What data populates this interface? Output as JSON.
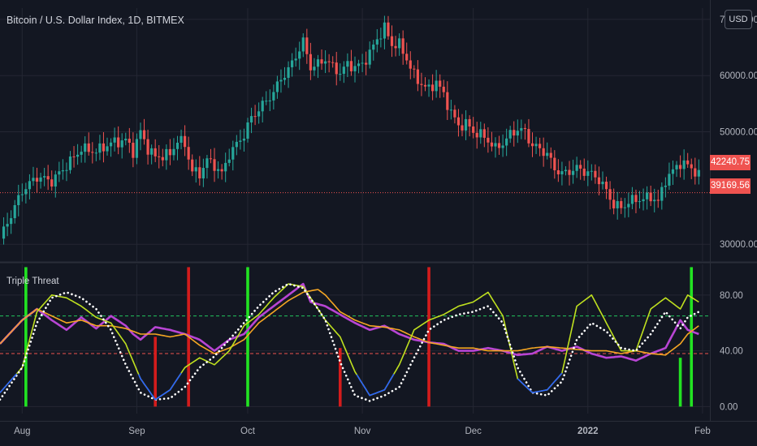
{
  "header": {
    "symbol": "Bitcoin / U.S. Dollar Index, 1D, BITMEX"
  },
  "currency_button": "USD",
  "indicator_title": "Triple Threat",
  "price_tags": {
    "last": "42240.75",
    "line": "39169.56"
  },
  "colors": {
    "up": "#26a69a",
    "down": "#ef5350",
    "bg": "#131722",
    "grid": "#242733",
    "axis_text": "#b2b5be"
  },
  "chart_data": [
    {
      "type": "candlestick",
      "title": "Bitcoin / U.S. Dollar Index, 1D, BITMEX",
      "y_ticks": [
        "70000.00",
        "60000.00",
        "50000.00",
        "30000.00"
      ],
      "ylim": [
        27000,
        72000
      ],
      "x_ticks": [
        "Aug",
        "Sep",
        "Oct",
        "Nov",
        "Dec",
        "2022",
        "Feb"
      ],
      "x_tick_days": [
        6,
        37,
        67,
        98,
        128,
        159,
        190
      ],
      "reference_line": 39169.56,
      "last_price": 42240.75,
      "close_path": [
        [
          0,
          31000
        ],
        [
          6,
          39500
        ],
        [
          10,
          42000
        ],
        [
          14,
          41200
        ],
        [
          18,
          44000
        ],
        [
          22,
          47000
        ],
        [
          26,
          46500
        ],
        [
          30,
          48000
        ],
        [
          34,
          48500
        ],
        [
          36,
          46500
        ],
        [
          38,
          50000
        ],
        [
          40,
          47000
        ],
        [
          42,
          45500
        ],
        [
          46,
          46000
        ],
        [
          48,
          48500
        ],
        [
          50,
          47800
        ],
        [
          52,
          43000
        ],
        [
          54,
          42500
        ],
        [
          56,
          45000
        ],
        [
          58,
          44000
        ],
        [
          60,
          42500
        ],
        [
          62,
          46000
        ],
        [
          66,
          49500
        ],
        [
          68,
          52500
        ],
        [
          70,
          54000
        ],
        [
          72,
          55500
        ],
        [
          74,
          57000
        ],
        [
          76,
          59500
        ],
        [
          78,
          61000
        ],
        [
          80,
          63500
        ],
        [
          82,
          66000
        ],
        [
          84,
          61500
        ],
        [
          86,
          62000
        ],
        [
          88,
          63000
        ],
        [
          90,
          61500
        ],
        [
          92,
          60500
        ],
        [
          94,
          62000
        ],
        [
          96,
          61500
        ],
        [
          98,
          62000
        ],
        [
          100,
          64000
        ],
        [
          102,
          66500
        ],
        [
          104,
          68500
        ],
        [
          106,
          65500
        ],
        [
          108,
          65500
        ],
        [
          110,
          63000
        ],
        [
          112,
          60000
        ],
        [
          114,
          58500
        ],
        [
          116,
          57500
        ],
        [
          118,
          59000
        ],
        [
          120,
          56500
        ],
        [
          122,
          53500
        ],
        [
          124,
          51000
        ],
        [
          126,
          51500
        ],
        [
          128,
          50000
        ],
        [
          130,
          49500
        ],
        [
          132,
          48500
        ],
        [
          134,
          47000
        ],
        [
          136,
          48000
        ],
        [
          138,
          49500
        ],
        [
          140,
          50500
        ],
        [
          142,
          50000
        ],
        [
          144,
          47500
        ],
        [
          146,
          47000
        ],
        [
          148,
          46000
        ],
        [
          150,
          43500
        ],
        [
          152,
          42500
        ],
        [
          154,
          43000
        ],
        [
          156,
          43500
        ],
        [
          158,
          43000
        ],
        [
          160,
          42500
        ],
        [
          162,
          41500
        ],
        [
          164,
          39500
        ],
        [
          166,
          37000
        ],
        [
          168,
          36500
        ],
        [
          170,
          37500
        ],
        [
          172,
          38000
        ],
        [
          174,
          38000
        ],
        [
          176,
          38500
        ],
        [
          178,
          37500
        ],
        [
          180,
          41500
        ],
        [
          182,
          43000
        ],
        [
          184,
          44500
        ],
        [
          186,
          44000
        ],
        [
          188,
          43000
        ],
        [
          189,
          42240
        ]
      ]
    },
    {
      "type": "line",
      "title": "Triple Threat",
      "y_ticks": [
        "80.00",
        "40.00",
        "0.00"
      ],
      "ylim": [
        -5,
        102
      ],
      "hlines": [
        {
          "y": 65,
          "style": "dashed",
          "color": "#22c55e"
        },
        {
          "y": 38,
          "style": "dashed",
          "color": "#ef5350"
        }
      ],
      "series": [
        {
          "color": "#b845d4",
          "values": [
            [
              0,
              45
            ],
            [
              6,
              62
            ],
            [
              10,
              70
            ],
            [
              14,
              62
            ],
            [
              18,
              55
            ],
            [
              22,
              64
            ],
            [
              26,
              56
            ],
            [
              30,
              65
            ],
            [
              34,
              58
            ],
            [
              36,
              52
            ],
            [
              38,
              48
            ],
            [
              42,
              57
            ],
            [
              46,
              55
            ],
            [
              50,
              52
            ],
            [
              54,
              48
            ],
            [
              58,
              40
            ],
            [
              62,
              48
            ],
            [
              66,
              52
            ],
            [
              70,
              64
            ],
            [
              74,
              72
            ],
            [
              78,
              80
            ],
            [
              82,
              88
            ],
            [
              84,
              75
            ],
            [
              88,
              72
            ],
            [
              92,
              66
            ],
            [
              96,
              60
            ],
            [
              100,
              55
            ],
            [
              104,
              58
            ],
            [
              108,
              52
            ],
            [
              112,
              48
            ],
            [
              116,
              46
            ],
            [
              120,
              45
            ],
            [
              124,
              40
            ],
            [
              128,
              40
            ],
            [
              132,
              42
            ],
            [
              136,
              40
            ],
            [
              140,
              37
            ],
            [
              144,
              38
            ],
            [
              148,
              43
            ],
            [
              152,
              40
            ],
            [
              156,
              43
            ],
            [
              160,
              38
            ],
            [
              164,
              35
            ],
            [
              168,
              36
            ],
            [
              172,
              33
            ],
            [
              176,
              38
            ],
            [
              180,
              42
            ],
            [
              184,
              62
            ],
            [
              186,
              55
            ],
            [
              189,
              52
            ]
          ]
        },
        {
          "color": "#f5a623",
          "values": [
            [
              0,
              45
            ],
            [
              6,
              62
            ],
            [
              10,
              70
            ],
            [
              14,
              65
            ],
            [
              18,
              60
            ],
            [
              22,
              62
            ],
            [
              26,
              58
            ],
            [
              30,
              58
            ],
            [
              34,
              56
            ],
            [
              38,
              52
            ],
            [
              42,
              52
            ],
            [
              46,
              50
            ],
            [
              50,
              52
            ],
            [
              54,
              44
            ],
            [
              58,
              38
            ],
            [
              62,
              42
            ],
            [
              66,
              48
            ],
            [
              70,
              60
            ],
            [
              74,
              68
            ],
            [
              78,
              76
            ],
            [
              82,
              82
            ],
            [
              86,
              84
            ],
            [
              88,
              80
            ],
            [
              92,
              68
            ],
            [
              96,
              62
            ],
            [
              100,
              58
            ],
            [
              104,
              57
            ],
            [
              108,
              55
            ],
            [
              112,
              50
            ],
            [
              116,
              46
            ],
            [
              120,
              44
            ],
            [
              124,
              42
            ],
            [
              128,
              42
            ],
            [
              132,
              40
            ],
            [
              136,
              40
            ],
            [
              140,
              40
            ],
            [
              144,
              42
            ],
            [
              148,
              43
            ],
            [
              152,
              42
            ],
            [
              156,
              41
            ],
            [
              160,
              40
            ],
            [
              164,
              40
            ],
            [
              168,
              38
            ],
            [
              172,
              40
            ],
            [
              176,
              38
            ],
            [
              180,
              37
            ],
            [
              184,
              45
            ],
            [
              186,
              52
            ],
            [
              189,
              58
            ]
          ]
        },
        {
          "color": "#bfe01f",
          "values": [
            [
              0,
              10
            ],
            [
              6,
              28
            ],
            [
              10,
              68
            ],
            [
              14,
              80
            ],
            [
              18,
              78
            ],
            [
              22,
              72
            ],
            [
              26,
              64
            ],
            [
              30,
              60
            ],
            [
              34,
              45
            ],
            [
              38,
              20
            ],
            [
              42,
              5
            ],
            [
              46,
              12
            ],
            [
              50,
              28
            ],
            [
              54,
              35
            ],
            [
              58,
              30
            ],
            [
              62,
              40
            ],
            [
              66,
              58
            ],
            [
              70,
              66
            ],
            [
              74,
              78
            ],
            [
              78,
              88
            ],
            [
              82,
              86
            ],
            [
              86,
              70
            ],
            [
              88,
              62
            ],
            [
              92,
              50
            ],
            [
              96,
              25
            ],
            [
              100,
              8
            ],
            [
              104,
              12
            ],
            [
              108,
              30
            ],
            [
              112,
              55
            ],
            [
              116,
              62
            ],
            [
              120,
              66
            ],
            [
              124,
              72
            ],
            [
              128,
              75
            ],
            [
              132,
              82
            ],
            [
              136,
              65
            ],
            [
              140,
              20
            ],
            [
              144,
              10
            ],
            [
              148,
              12
            ],
            [
              152,
              24
            ],
            [
              156,
              72
            ],
            [
              160,
              80
            ],
            [
              164,
              60
            ],
            [
              168,
              40
            ],
            [
              172,
              40
            ],
            [
              176,
              70
            ],
            [
              180,
              78
            ],
            [
              184,
              70
            ],
            [
              186,
              80
            ],
            [
              189,
              75
            ]
          ]
        },
        {
          "color": "#ffffff",
          "style": "dotted",
          "values": [
            [
              0,
              5
            ],
            [
              6,
              28
            ],
            [
              10,
              60
            ],
            [
              14,
              78
            ],
            [
              18,
              82
            ],
            [
              22,
              78
            ],
            [
              26,
              70
            ],
            [
              30,
              55
            ],
            [
              34,
              30
            ],
            [
              38,
              10
            ],
            [
              42,
              5
            ],
            [
              46,
              6
            ],
            [
              50,
              14
            ],
            [
              54,
              28
            ],
            [
              58,
              36
            ],
            [
              62,
              48
            ],
            [
              66,
              60
            ],
            [
              70,
              72
            ],
            [
              74,
              82
            ],
            [
              78,
              88
            ],
            [
              82,
              85
            ],
            [
              86,
              70
            ],
            [
              88,
              62
            ],
            [
              92,
              32
            ],
            [
              96,
              8
            ],
            [
              100,
              4
            ],
            [
              104,
              8
            ],
            [
              108,
              14
            ],
            [
              112,
              35
            ],
            [
              116,
              55
            ],
            [
              120,
              62
            ],
            [
              124,
              66
            ],
            [
              128,
              68
            ],
            [
              132,
              72
            ],
            [
              136,
              60
            ],
            [
              140,
              28
            ],
            [
              144,
              10
            ],
            [
              148,
              8
            ],
            [
              152,
              18
            ],
            [
              156,
              48
            ],
            [
              160,
              60
            ],
            [
              164,
              54
            ],
            [
              168,
              42
            ],
            [
              172,
              40
            ],
            [
              176,
              52
            ],
            [
              180,
              68
            ],
            [
              184,
              56
            ],
            [
              186,
              64
            ],
            [
              189,
              68
            ]
          ]
        }
      ],
      "signal_bars": [
        {
          "x": 7,
          "color": "#22e322",
          "from": 0,
          "to": 100
        },
        {
          "x": 42,
          "color": "#d41c1c",
          "from": 0,
          "to": 50
        },
        {
          "x": 51,
          "color": "#d41c1c",
          "from": 0,
          "to": 100
        },
        {
          "x": 67,
          "color": "#22e322",
          "from": 0,
          "to": 100
        },
        {
          "x": 92,
          "color": "#d41c1c",
          "from": 0,
          "to": 42
        },
        {
          "x": 116,
          "color": "#d41c1c",
          "from": 0,
          "to": 100
        },
        {
          "x": 184,
          "color": "#22e322",
          "from": 0,
          "to": 35
        },
        {
          "x": 187,
          "color": "#22e322",
          "from": 0,
          "to": 100
        }
      ]
    }
  ]
}
